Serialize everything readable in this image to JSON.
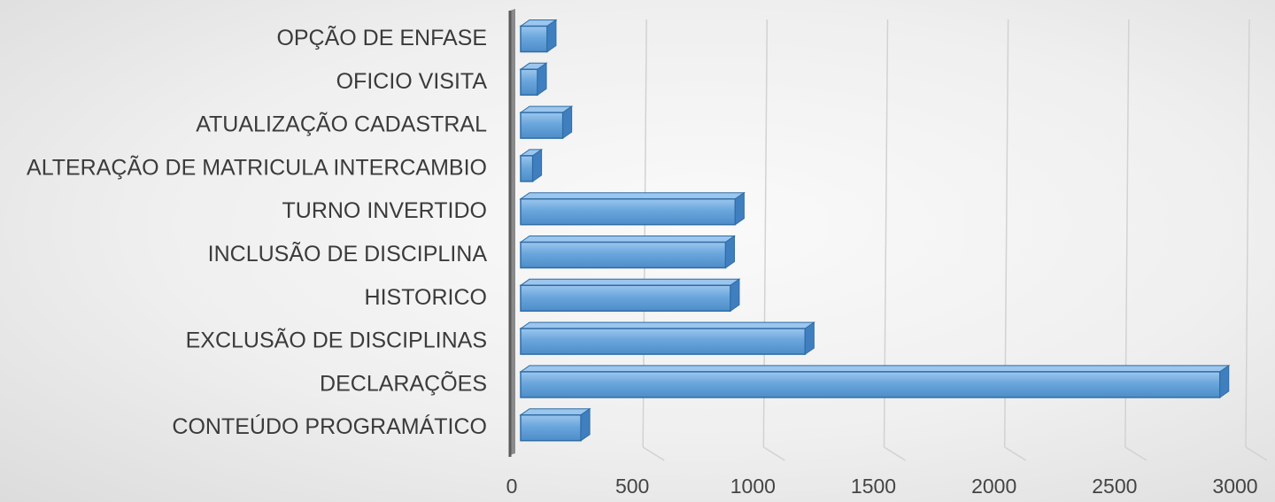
{
  "chart_data": {
    "type": "bar",
    "orientation": "horizontal",
    "categories": [
      "OPÇÃO DE ENFASE",
      "OFICIO VISITA",
      "ATUALIZAÇÃO CADASTRAL ",
      "ALTERAÇÃO DE MATRICULA INTERCAMBIO",
      "TURNO INVERTIDO",
      "INCLUSÃO DE DISCIPLINA",
      "HISTORICO ",
      "EXCLUSÃO DE DISCIPLINAS",
      "DECLARAÇÕES ",
      "CONTEÚDO PROGRAMÁTICO "
    ],
    "values": [
      110,
      70,
      175,
      50,
      890,
      850,
      870,
      1180,
      2900,
      250
    ],
    "xlim": [
      0,
      3000
    ],
    "x_ticks": [
      "0",
      "500",
      "1000",
      "1500",
      "2000",
      "2500",
      "3000"
    ],
    "title": "",
    "xlabel": "",
    "ylabel": "",
    "grid": true,
    "legend": "none",
    "colors": {
      "bar_face": "#5b9bd5",
      "bar_light": "#8dbce6",
      "bar_edge": "#2e6da4",
      "bar_side": "#3f7fc0",
      "bar_top": "#9cc6ee",
      "axis": "#5a5a5a",
      "axis_depth": "#8a8a8a",
      "grid": "#d2d2d2"
    }
  }
}
